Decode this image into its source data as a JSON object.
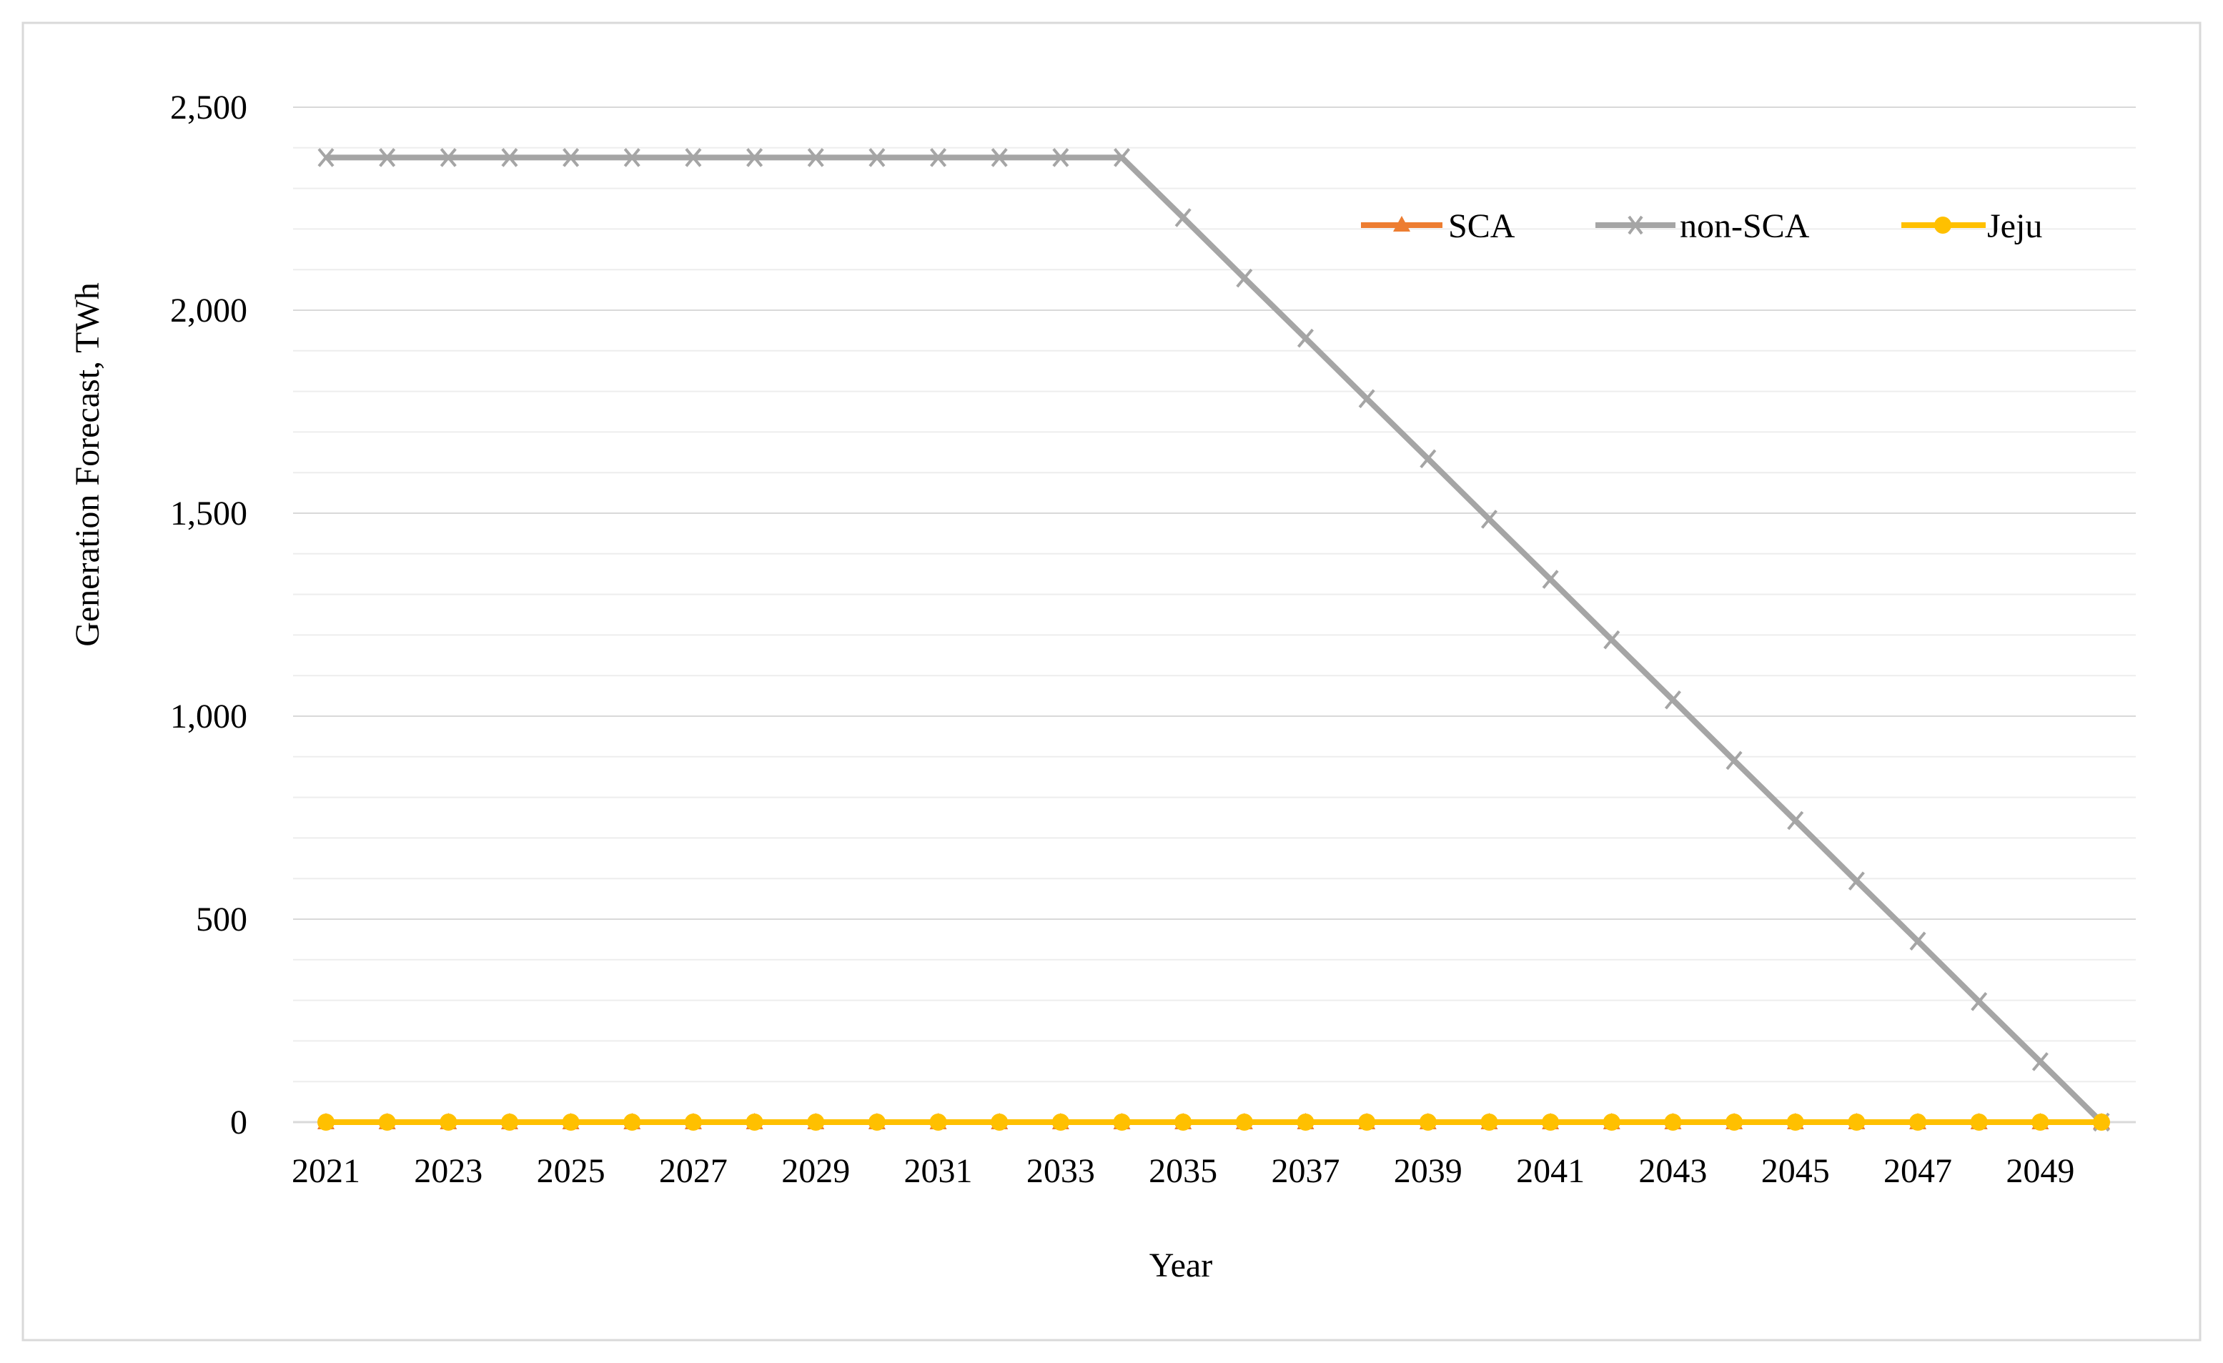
{
  "colors": {
    "SCA": "#ED7D31",
    "non-SCA": "#A5A5A5",
    "Jeju": "#FFC000",
    "gridline": "#D9D9D9",
    "border": "#D9D9D9"
  },
  "chart_data": {
    "type": "line",
    "title": "",
    "xlabel": "Year",
    "ylabel": "Generation Forecast, TWh",
    "ylim": [
      0,
      2500
    ],
    "yticks": [
      "0",
      "500",
      "1,000",
      "1,500",
      "2,000",
      "2,500"
    ],
    "x": [
      2021,
      2022,
      2023,
      2024,
      2025,
      2026,
      2027,
      2028,
      2029,
      2030,
      2031,
      2032,
      2033,
      2034,
      2035,
      2036,
      2037,
      2038,
      2039,
      2040,
      2041,
      2042,
      2043,
      2044,
      2045,
      2046,
      2047,
      2048,
      2049,
      2050
    ],
    "xtick_labels": [
      "2021",
      "2023",
      "2025",
      "2027",
      "2029",
      "2031",
      "2033",
      "2035",
      "2037",
      "2039",
      "2041",
      "2043",
      "2045",
      "2047",
      "2049"
    ],
    "grid": true,
    "legend_position": "top-right",
    "series": [
      {
        "name": "SCA",
        "marker": "triangle",
        "values": [
          0,
          0,
          0,
          0,
          0,
          0,
          0,
          0,
          0,
          0,
          0,
          0,
          0,
          0,
          0,
          0,
          0,
          0,
          0,
          0,
          0,
          0,
          0,
          0,
          0,
          0,
          0,
          0,
          0,
          0
        ]
      },
      {
        "name": "non-SCA",
        "marker": "x",
        "values": [
          2376,
          2376,
          2376,
          2376,
          2376,
          2376,
          2376,
          2376,
          2376,
          2376,
          2376,
          2376,
          2376,
          2376,
          2228,
          2079,
          1931,
          1782,
          1634,
          1485,
          1337,
          1188,
          1040,
          891,
          743,
          594,
          446,
          297,
          149,
          0
        ]
      },
      {
        "name": "Jeju",
        "marker": "circle",
        "values": [
          0,
          0,
          0,
          0,
          0,
          0,
          0,
          0,
          0,
          0,
          0,
          0,
          0,
          0,
          0,
          0,
          0,
          0,
          0,
          0,
          0,
          0,
          0,
          0,
          0,
          0,
          0,
          0,
          0,
          0
        ]
      }
    ]
  }
}
